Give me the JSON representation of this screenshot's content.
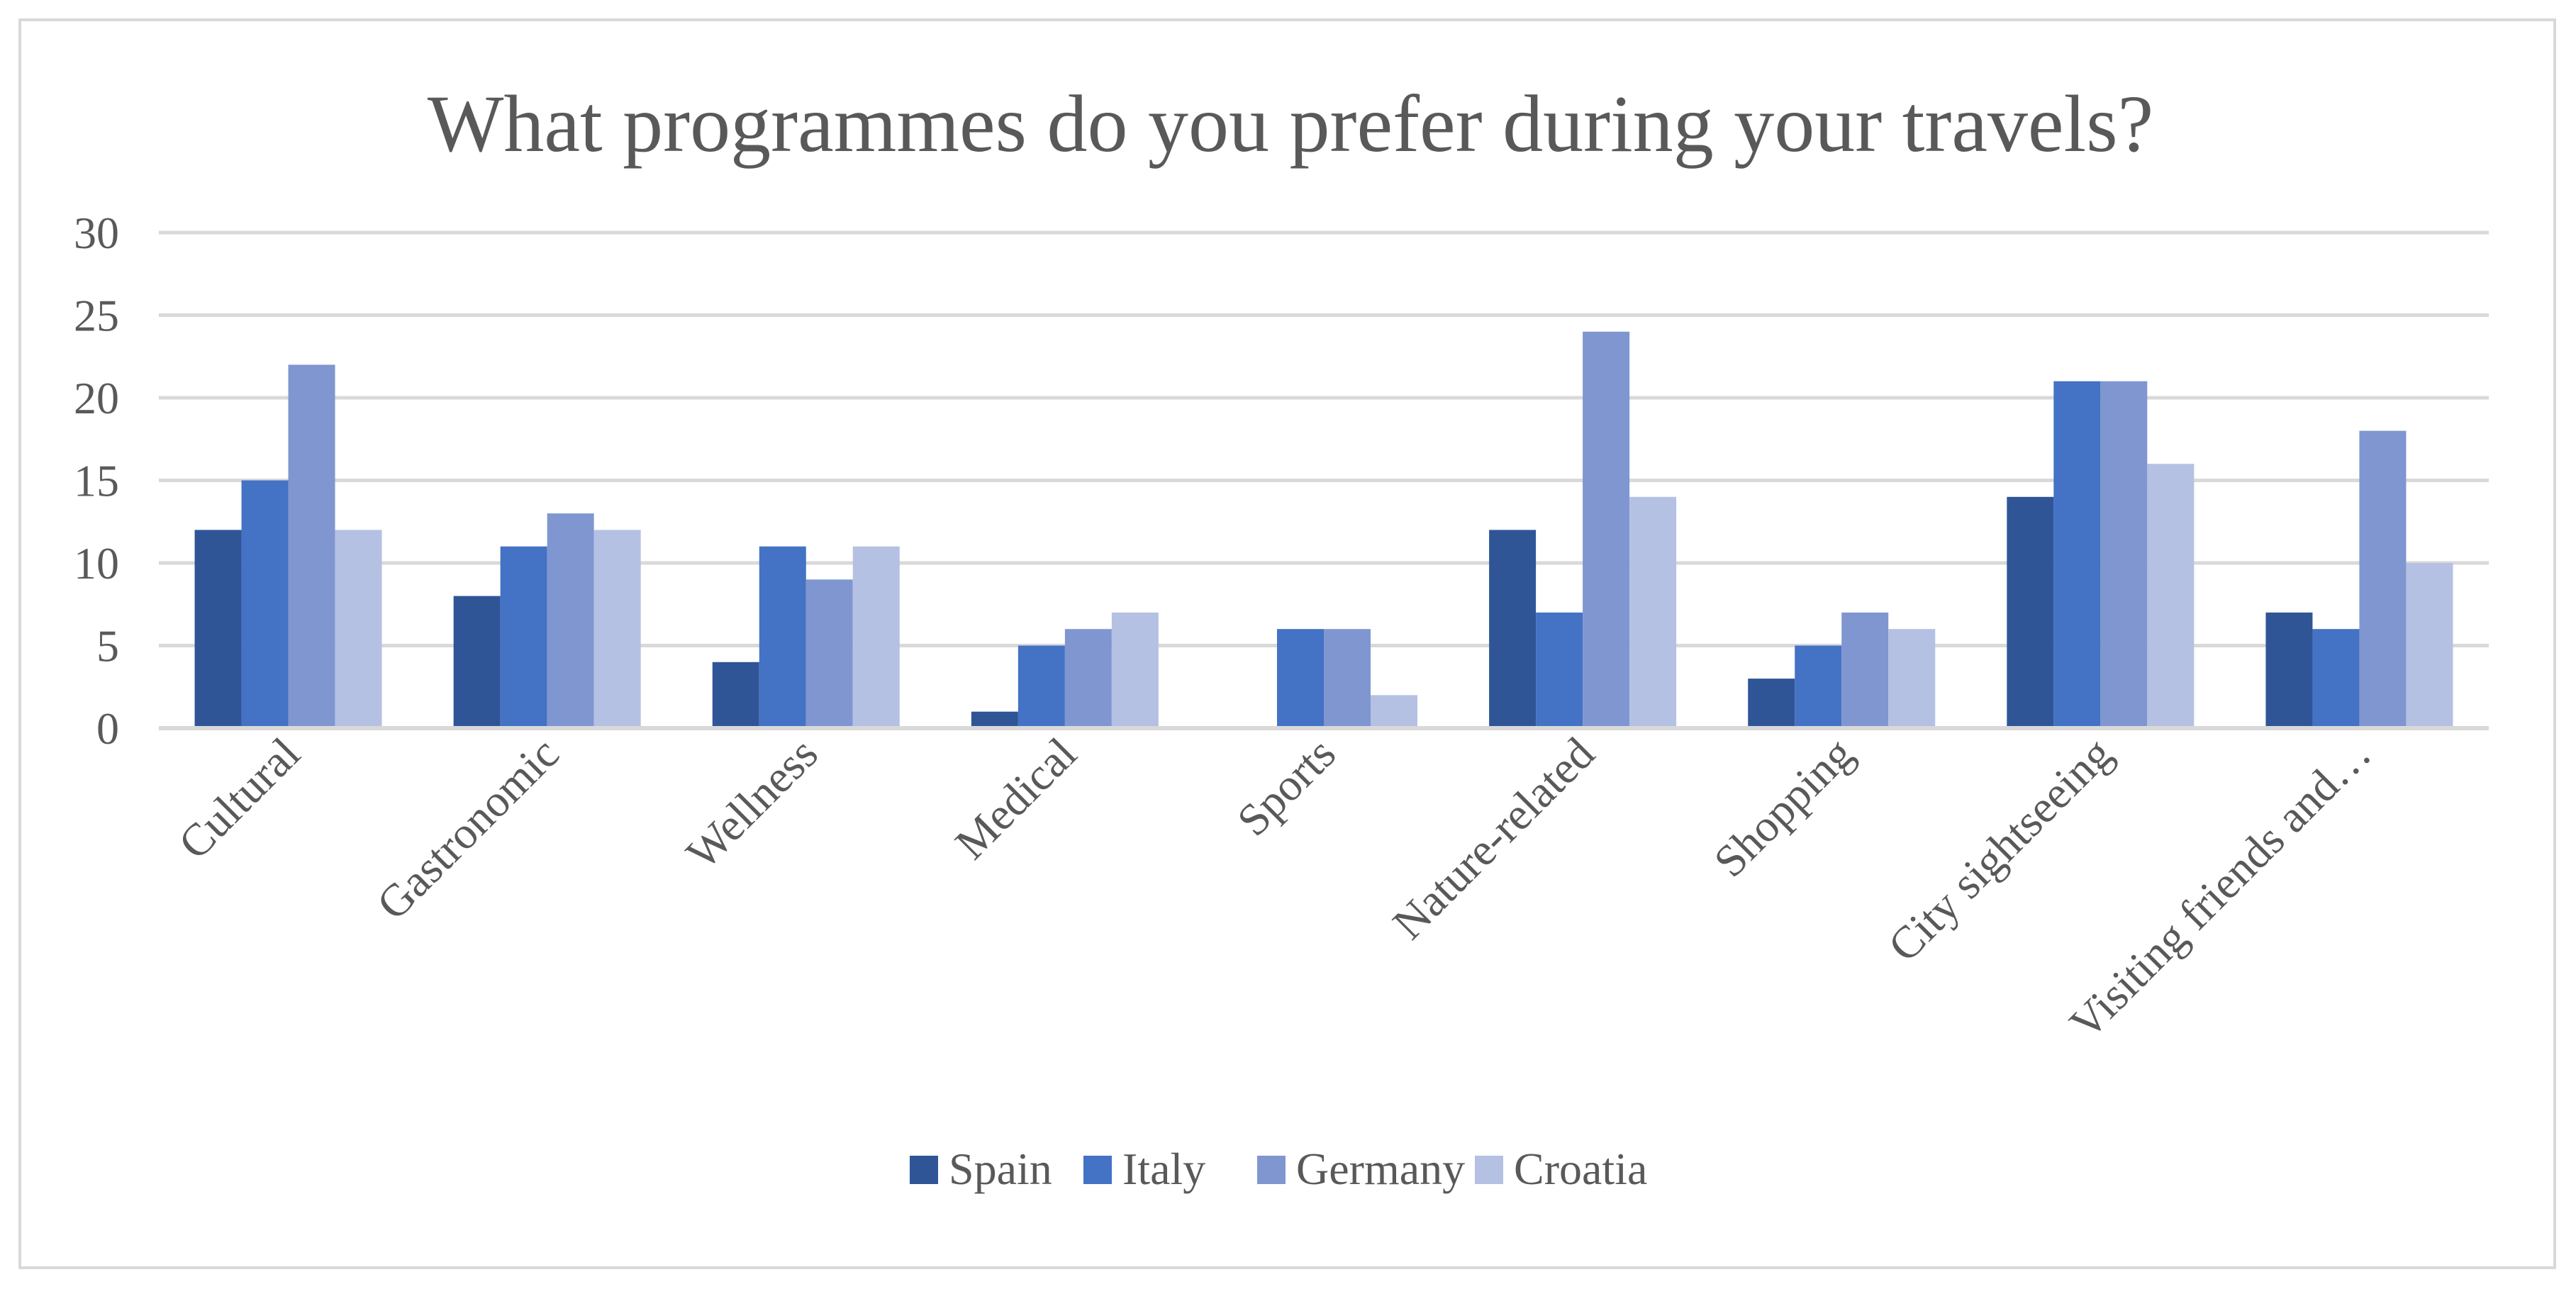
{
  "chart_data": {
    "type": "bar",
    "title": "What programmes do you prefer during your travels?",
    "xlabel": "",
    "ylabel": "",
    "ylim": [
      0,
      30
    ],
    "yticks": [
      0,
      5,
      10,
      15,
      20,
      25,
      30
    ],
    "grid": true,
    "legend_position": "bottom",
    "categories": [
      "Cultural",
      "Gastronomic",
      "Wellness",
      "Medical",
      "Sports",
      "Nature-related",
      "Shopping",
      "City sightseeing",
      "Visiting friends and…"
    ],
    "series": [
      {
        "name": "Spain",
        "color": "#2f5597",
        "values": [
          12,
          8,
          4,
          1,
          0,
          12,
          3,
          14,
          7
        ]
      },
      {
        "name": "Italy",
        "color": "#4472c4",
        "values": [
          15,
          11,
          11,
          5,
          6,
          7,
          5,
          21,
          6
        ]
      },
      {
        "name": "Germany",
        "color": "#7f96d0",
        "values": [
          22,
          13,
          9,
          6,
          6,
          24,
          7,
          21,
          18
        ]
      },
      {
        "name": "Croatia",
        "color": "#b4c1e3",
        "values": [
          12,
          12,
          11,
          7,
          2,
          14,
          6,
          16,
          10
        ]
      }
    ]
  }
}
